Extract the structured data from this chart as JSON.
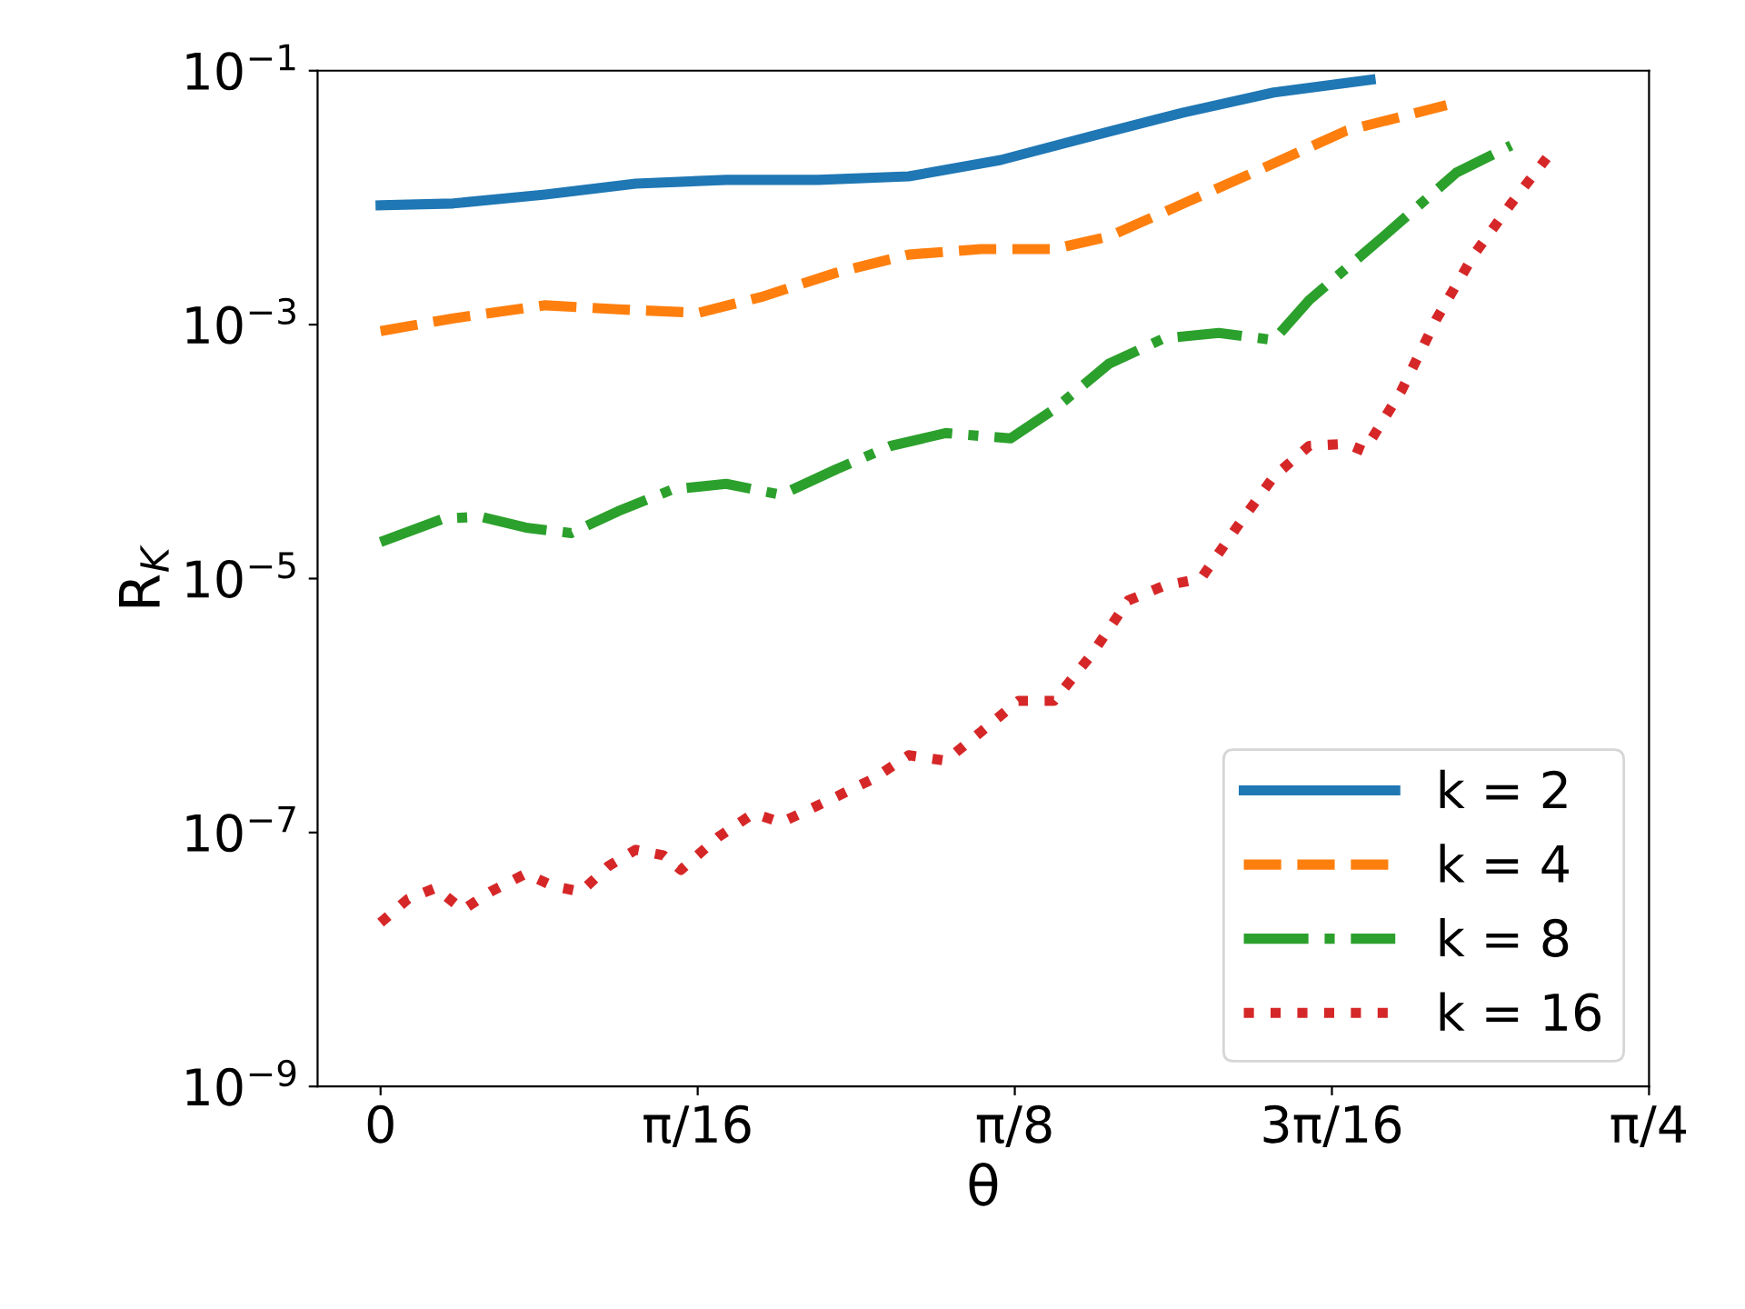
{
  "chart_data": {
    "type": "line",
    "xlabel": "θ",
    "ylabel": "R$_{K}$",
    "log": "y",
    "xlim": [
      -0.039,
      0.7854
    ],
    "ylim": [
      1e-09,
      0.1
    ],
    "xticks": [
      0,
      {
        "value": 0.19635,
        "label": "π/16"
      },
      {
        "value": 0.3927,
        "label": "π/8"
      },
      {
        "value": 0.58905,
        "label": "3π/16"
      },
      {
        "value": 0.7854,
        "label": "π/4"
      }
    ],
    "yticks": [
      {
        "value": 1e-09,
        "label": "10$^{−9}$"
      },
      {
        "value": 1e-07,
        "label": "10$^{−7}$"
      },
      {
        "value": 1e-05,
        "label": "10$^{−5}$"
      },
      {
        "value": 0.001,
        "label": "10$^{−3}$"
      },
      {
        "value": 0.1,
        "label": "10$^{−1}$"
      }
    ],
    "grid": false,
    "legend": "bottom right",
    "marker": "none",
    "series": [
      {
        "name": "k = 2",
        "color": "#1f77b4",
        "line_style": "solid",
        "x": [
          0,
          0.045,
          0.102,
          0.158,
          0.214,
          0.271,
          0.327,
          0.384,
          0.44,
          0.497,
          0.553,
          0.613
        ],
        "values": [
          0.0087,
          0.009,
          0.0106,
          0.0129,
          0.0138,
          0.0138,
          0.0147,
          0.0198,
          0.0305,
          0.0468,
          0.0673,
          0.0848
        ]
      },
      {
        "name": "k = 4",
        "color": "#ff7f0e",
        "line_style": "dashed",
        "x": [
          0,
          0.045,
          0.102,
          0.147,
          0.197,
          0.237,
          0.282,
          0.327,
          0.372,
          0.417,
          0.451,
          0.497,
          0.553,
          0.598,
          0.66
        ],
        "values": [
          0.00089,
          0.00112,
          0.00142,
          0.00132,
          0.00124,
          0.00167,
          0.00256,
          0.00356,
          0.00394,
          0.00394,
          0.00495,
          0.00897,
          0.0186,
          0.0337,
          0.0535
        ]
      },
      {
        "name": "k = 8",
        "color": "#2ca02c",
        "line_style": "dashdot",
        "x": [
          0,
          0.039,
          0.062,
          0.09,
          0.118,
          0.147,
          0.181,
          0.214,
          0.248,
          0.282,
          0.316,
          0.35,
          0.39,
          0.417,
          0.451,
          0.485,
          0.519,
          0.553,
          0.575,
          0.621,
          0.666,
          0.7
        ],
        "values": [
          1.94e-05,
          2.97e-05,
          3.07e-05,
          2.52e-05,
          2.28e-05,
          3.39e-05,
          5.05e-05,
          5.57e-05,
          4.57e-05,
          7.24e-05,
          0.000111,
          0.00014,
          0.000127,
          0.000215,
          0.000492,
          0.00078,
          0.000861,
          0.000755,
          0.00156,
          0.00495,
          0.0157,
          0.0258
        ]
      },
      {
        "name": "k = 16",
        "color": "#d62728",
        "line_style": "dotted",
        "x": [
          0,
          0.017,
          0.034,
          0.051,
          0.068,
          0.09,
          0.107,
          0.124,
          0.141,
          0.158,
          0.175,
          0.186,
          0.209,
          0.231,
          0.248,
          0.265,
          0.282,
          0.305,
          0.327,
          0.35,
          0.372,
          0.395,
          0.417,
          0.44,
          0.463,
          0.485,
          0.508,
          0.53,
          0.553,
          0.575,
          0.598,
          0.609,
          0.632,
          0.654,
          0.677,
          0.7,
          0.722
        ],
        "values": [
          1.95e-08,
          3e-08,
          3.66e-08,
          2.46e-08,
          3.42e-08,
          4.75e-08,
          3.78e-08,
          3.42e-08,
          5.43e-08,
          7.31e-08,
          6.62e-08,
          5.08e-08,
          9.2e-08,
          1.42e-07,
          1.2e-07,
          1.51e-07,
          1.91e-07,
          2.65e-07,
          4.06e-07,
          3.68e-07,
          6.25e-07,
          1.09e-06,
          1.09e-06,
          2.5e-06,
          6.73e-06,
          8.77e-06,
          1e-05,
          2.52e-05,
          6.35e-05,
          0.000111,
          0.000115,
          0.000101,
          0.0003,
          0.00112,
          0.00356,
          0.00897,
          0.0205
        ]
      }
    ]
  }
}
